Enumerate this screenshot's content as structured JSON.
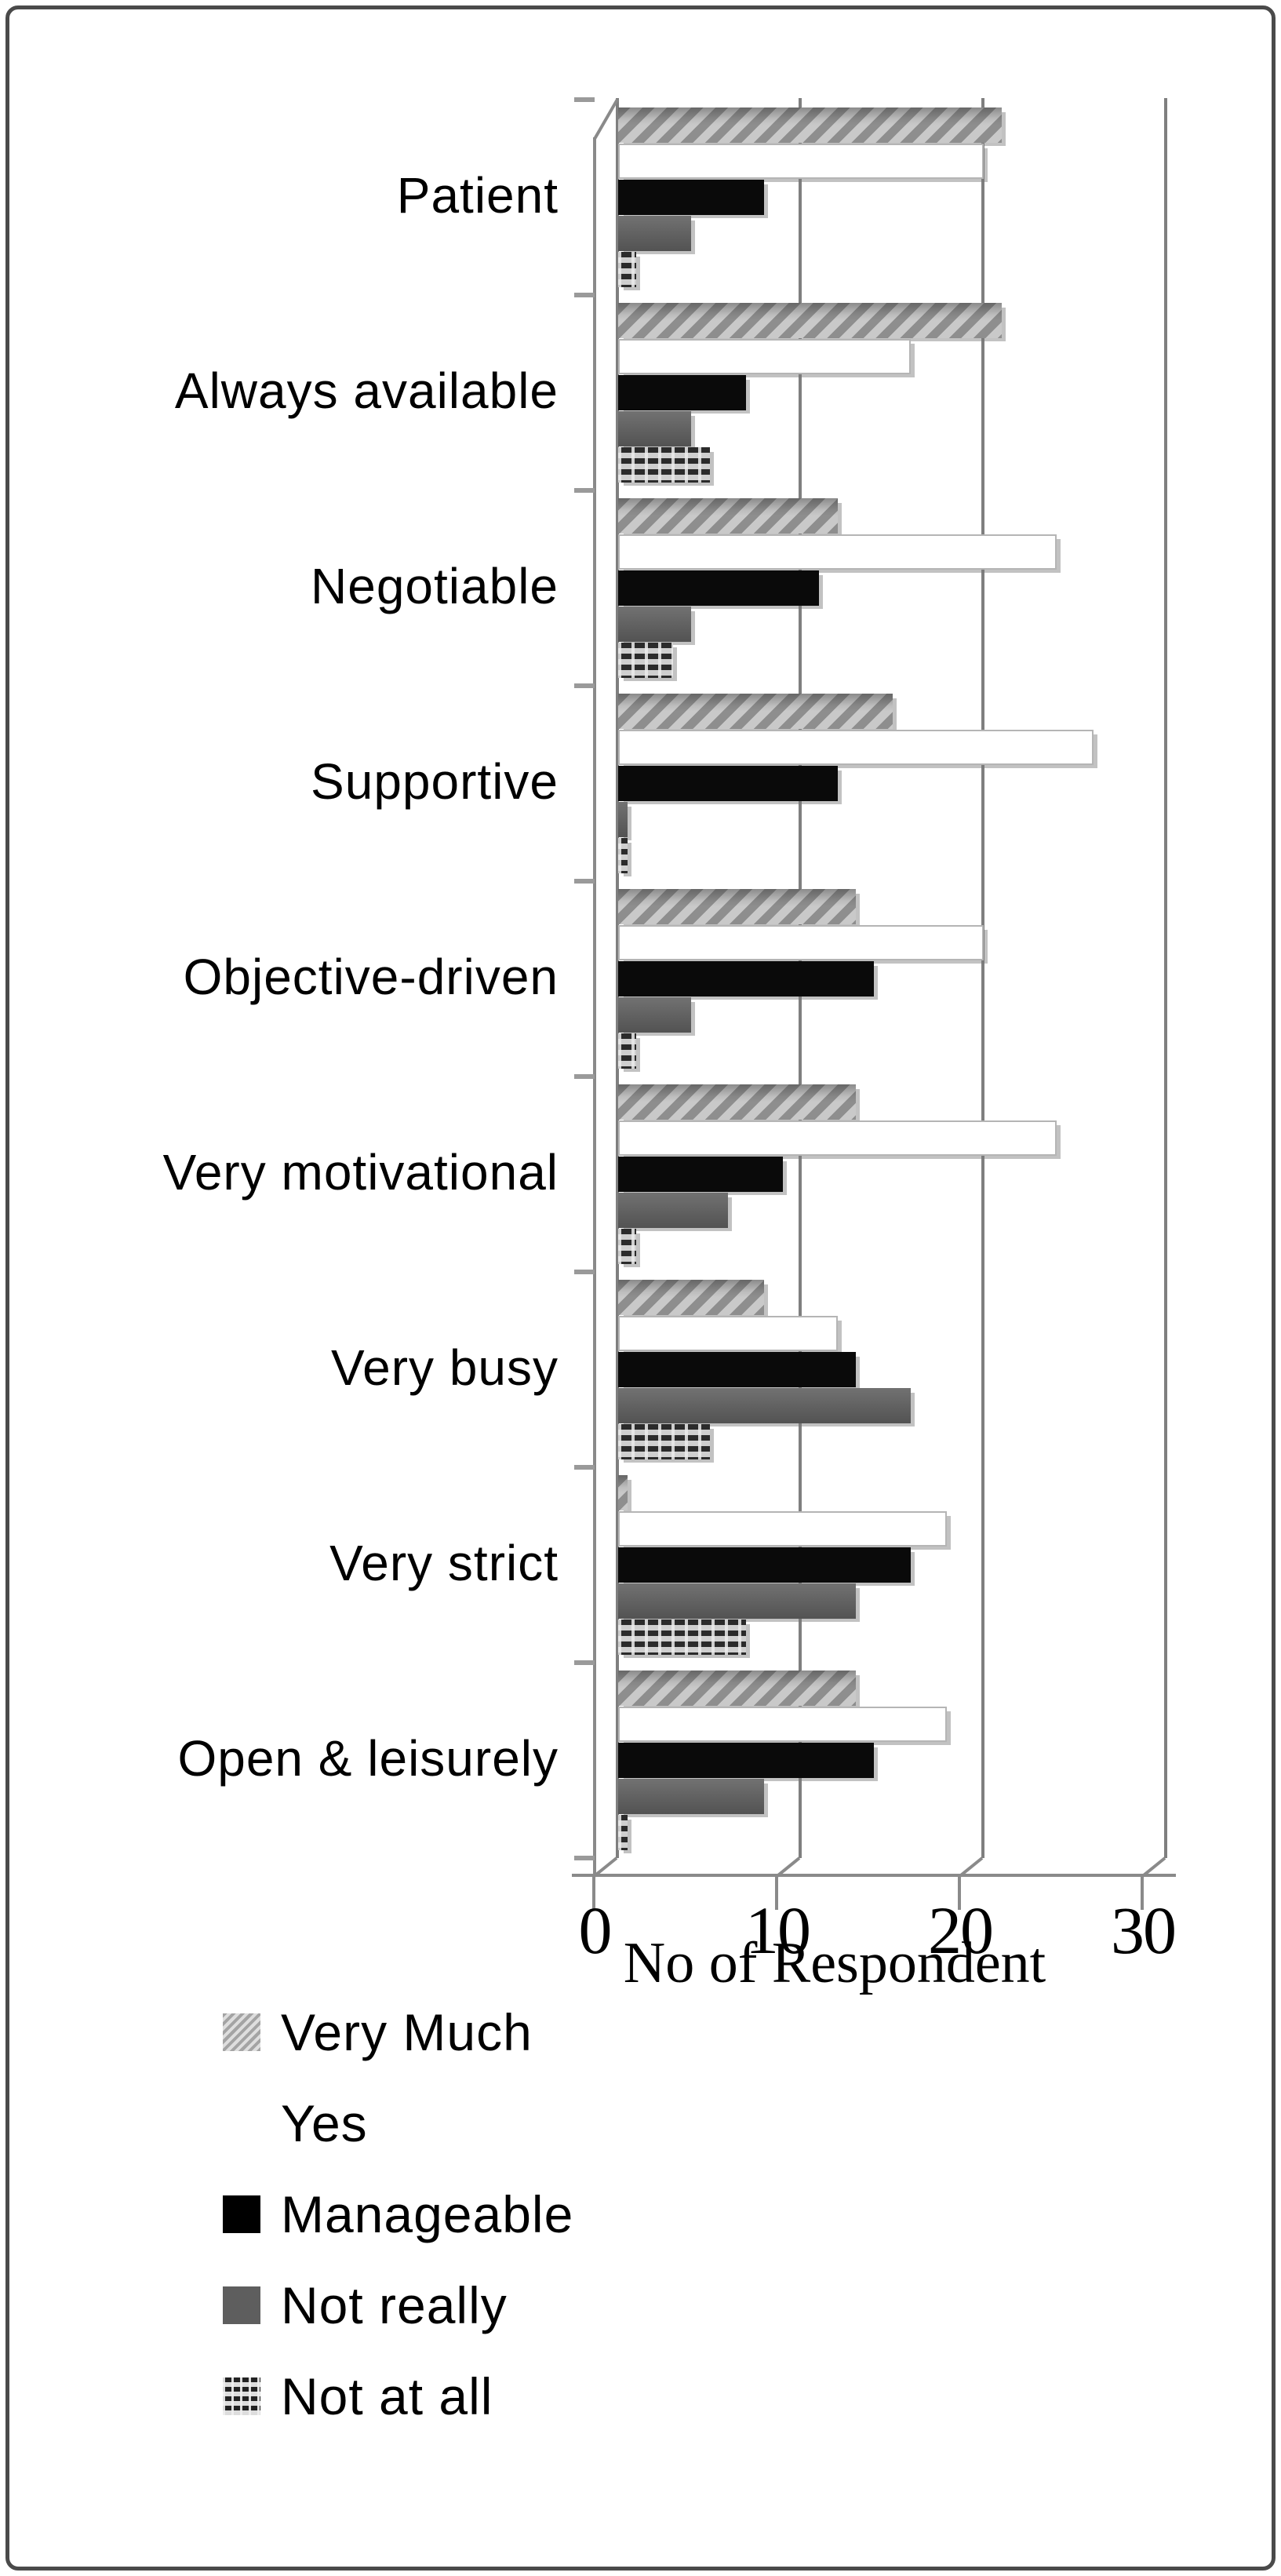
{
  "chart_data": {
    "type": "bar",
    "orientation": "horizontal",
    "effect": "3d",
    "title": "",
    "xlabel": "No of Respondent",
    "ylabel": "",
    "categories": [
      "Patient",
      "Always available",
      "Negotiable",
      "Supportive",
      "Objective-driven",
      "Very motivational",
      "Very busy",
      "Very strict",
      "Open & leisurely"
    ],
    "series": [
      {
        "name": "Very Much",
        "style": "diagonal-hatch",
        "values": [
          21,
          21,
          12,
          15,
          13,
          13,
          8,
          0.5,
          13
        ]
      },
      {
        "name": "Yes",
        "style": "white",
        "values": [
          20,
          16,
          24,
          26,
          20,
          24,
          12,
          18,
          18
        ]
      },
      {
        "name": "Manageable",
        "style": "black",
        "values": [
          8,
          7,
          11,
          12,
          14,
          9,
          13,
          16,
          14
        ]
      },
      {
        "name": "Not really",
        "style": "dark-gray",
        "values": [
          4,
          4,
          4,
          0.5,
          4,
          6,
          16,
          13,
          8
        ]
      },
      {
        "name": "Not at all",
        "style": "brick",
        "values": [
          1,
          5,
          3,
          0.5,
          1,
          1,
          5,
          7,
          0.5
        ]
      }
    ],
    "x_ticks": [
      0,
      10,
      20,
      30
    ],
    "xlim": [
      0,
      30
    ],
    "grid": "vertical-gridlines-on-3d-back-wall",
    "legend_position": "bottom-left",
    "colors": {
      "hatch_dark": "#8e8e8e",
      "hatch_light": "#c9c9c9",
      "black_series": "#0a0a0a",
      "dark_gray_series": "#5e5e5e",
      "white_bar_border": "#b5b5b5",
      "gridline": "#7f7f7f",
      "text": "#000000",
      "frame_border": "#4a4a4a"
    }
  }
}
